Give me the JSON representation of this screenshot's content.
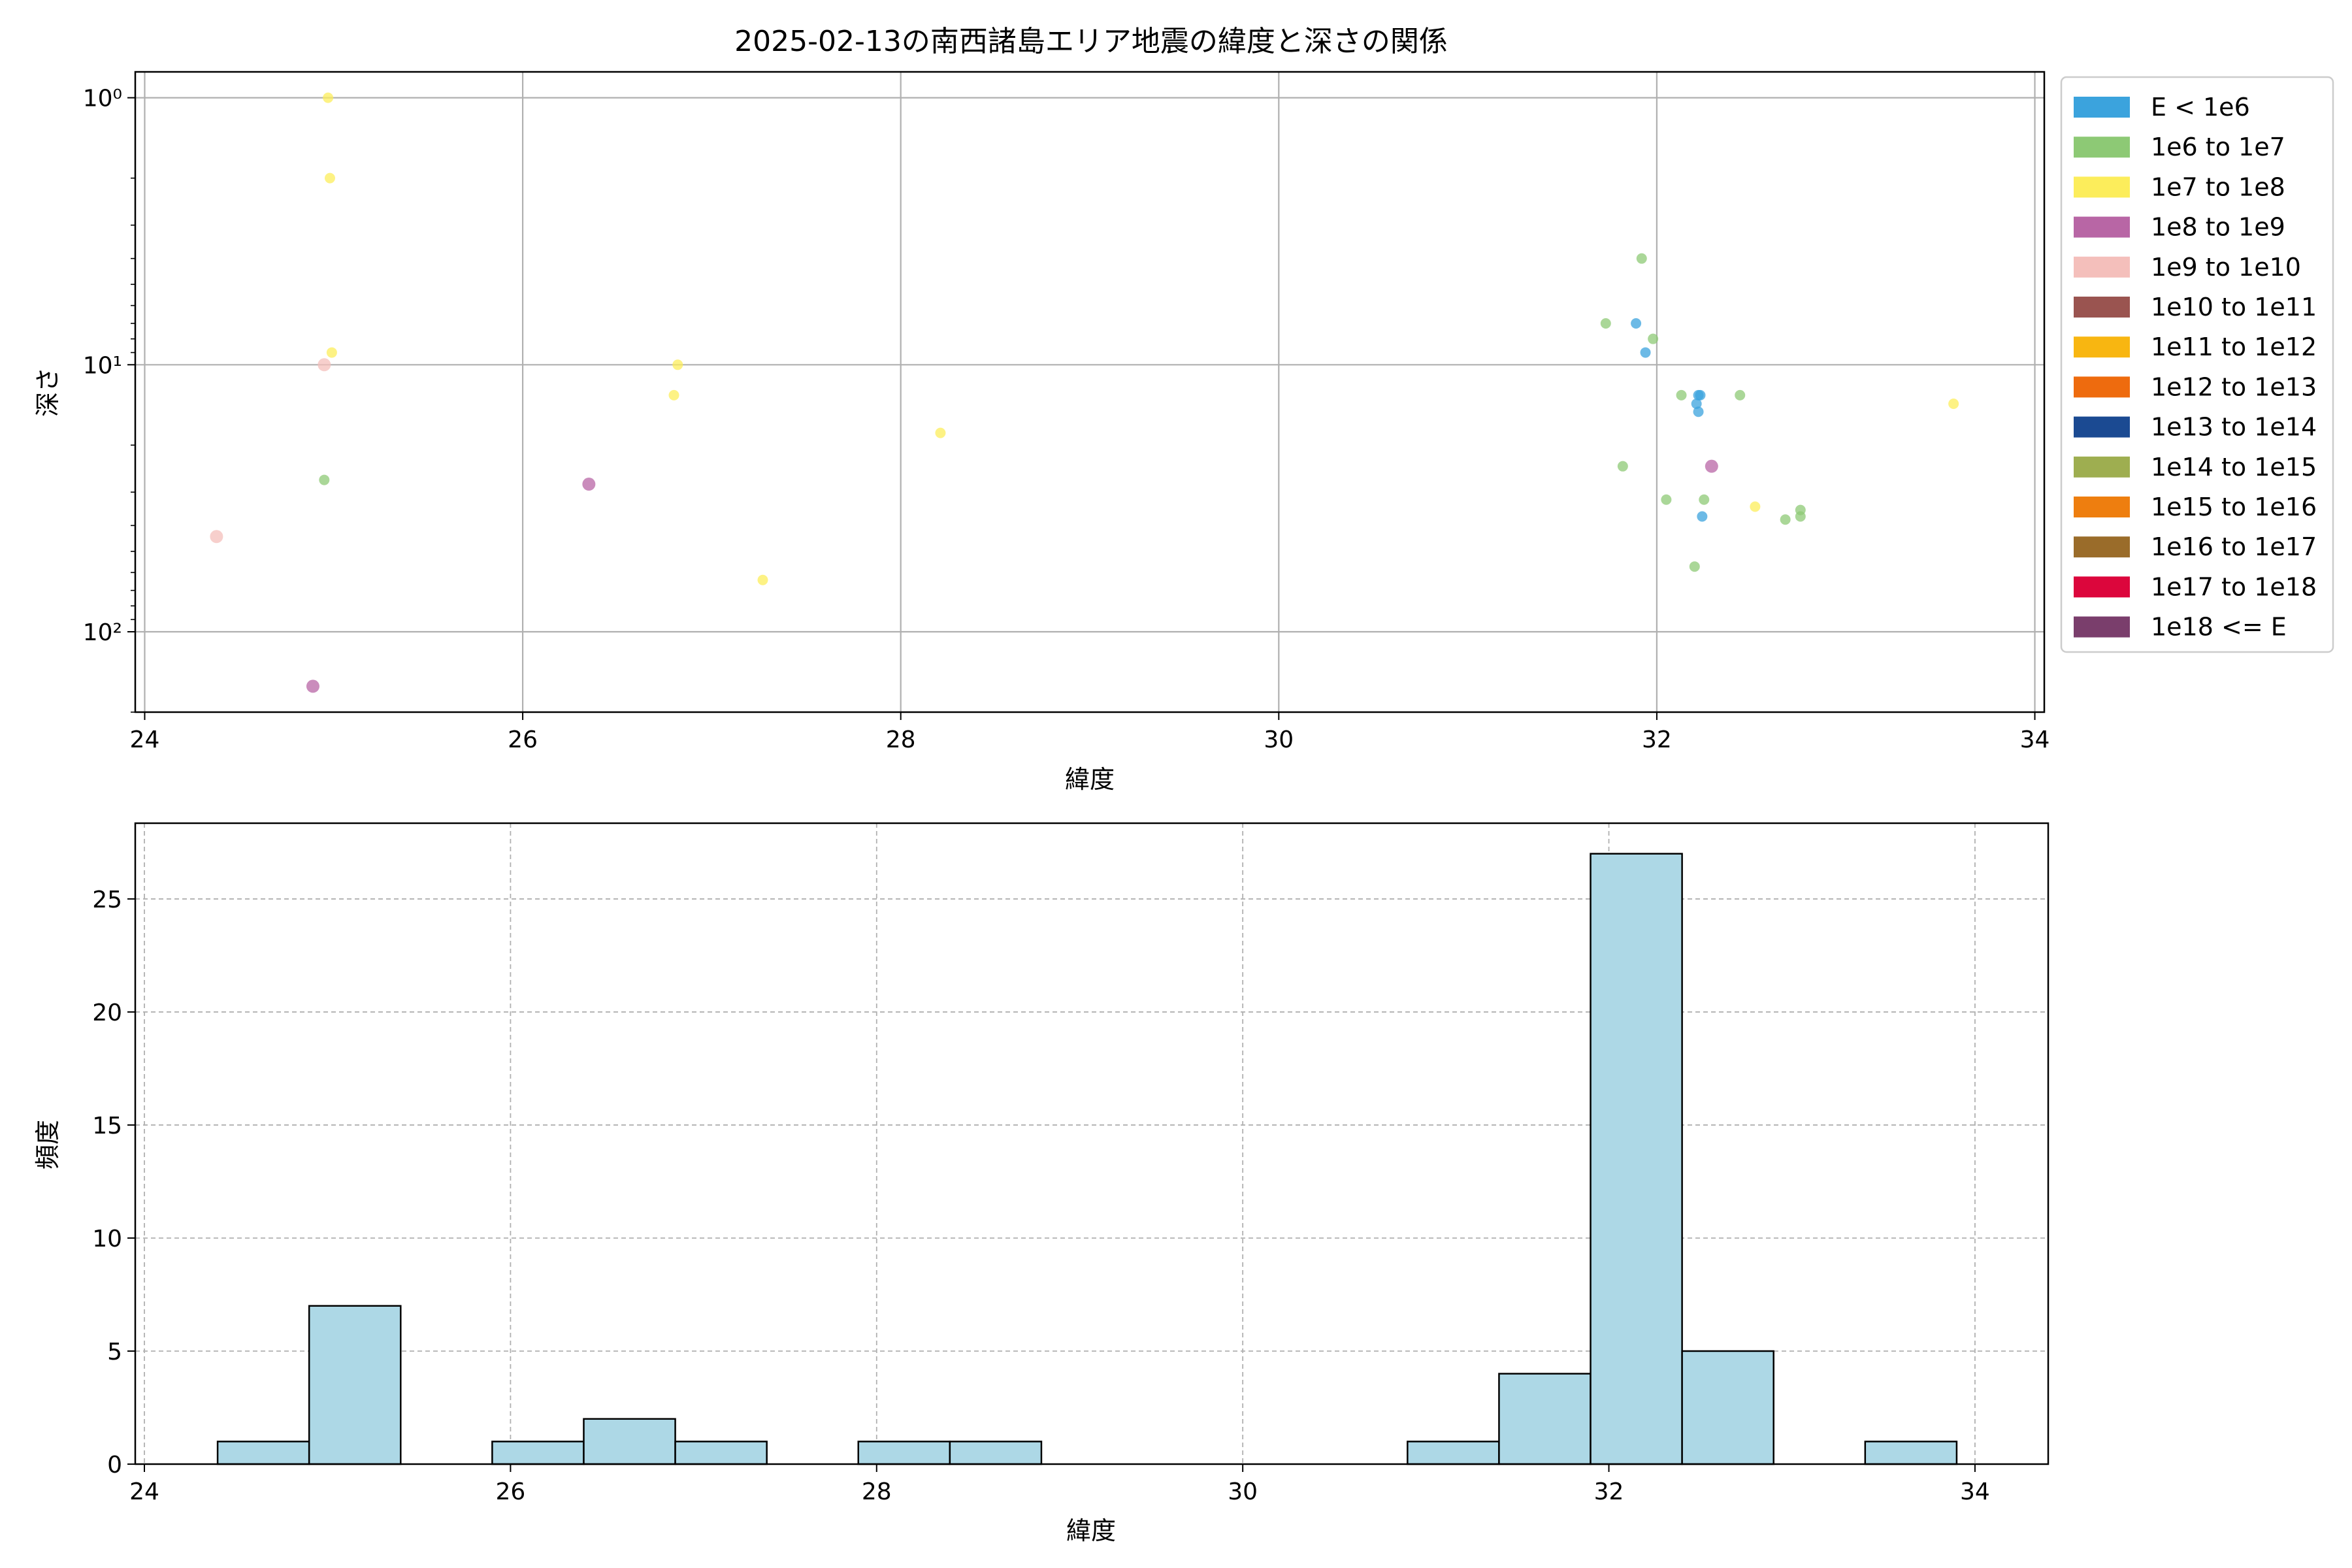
{
  "chart_data": [
    {
      "type": "scatter",
      "title": "2025-02-13の南西諸島エリア地震の緯度と深さの関係",
      "xlabel": "緯度",
      "ylabel": "深さ",
      "xlim": [
        23.95,
        34.05
      ],
      "ylim": [
        200,
        0.8
      ],
      "y_scale": "log",
      "y_inverted": true,
      "xticks": [
        24,
        26,
        28,
        30,
        32,
        34
      ],
      "yticks": [
        {
          "value": 1,
          "label": "10⁰"
        },
        {
          "value": 10,
          "label": "10¹"
        },
        {
          "value": 100,
          "label": "10²"
        }
      ],
      "grid": true,
      "legend": {
        "placement": "outside-right",
        "entries": [
          {
            "label": "E < 1e6",
            "color": "#3ba3dd"
          },
          {
            "label": "1e6 to 1e7",
            "color": "#8dc975"
          },
          {
            "label": "1e7 to 1e8",
            "color": "#fced5b"
          },
          {
            "label": "1e8 to 1e9",
            "color": "#b866a5"
          },
          {
            "label": "1e9 to 1e10",
            "color": "#f4bfbb"
          },
          {
            "label": "1e10 to 1e11",
            "color": "#9a5450"
          },
          {
            "label": "1e11 to 1e12",
            "color": "#f8b611"
          },
          {
            "label": "1e12 to 1e13",
            "color": "#ee6b0e"
          },
          {
            "label": "1e13 to 1e14",
            "color": "#1b4a92"
          },
          {
            "label": "1e14 to 1e15",
            "color": "#9eae50"
          },
          {
            "label": "1e15 to 1e16",
            "color": "#ee7e0f"
          },
          {
            "label": "1e16 to 1e17",
            "color": "#9a6c2a"
          },
          {
            "label": "1e17 to 1e18",
            "color": "#dc063c"
          },
          {
            "label": "1e18 <= E",
            "color": "#7a3e6c"
          }
        ]
      },
      "points": [
        {
          "x": 24.97,
          "y": 1.0,
          "class": 2
        },
        {
          "x": 24.98,
          "y": 2.0,
          "class": 2
        },
        {
          "x": 24.99,
          "y": 9.0,
          "class": 2
        },
        {
          "x": 24.95,
          "y": 10.0,
          "class": 4
        },
        {
          "x": 24.95,
          "y": 27,
          "class": 1
        },
        {
          "x": 24.38,
          "y": 44,
          "class": 4
        },
        {
          "x": 24.89,
          "y": 160,
          "class": 3
        },
        {
          "x": 26.35,
          "y": 28,
          "class": 3
        },
        {
          "x": 26.82,
          "y": 10.0,
          "class": 2
        },
        {
          "x": 26.8,
          "y": 13,
          "class": 2
        },
        {
          "x": 27.27,
          "y": 64,
          "class": 2
        },
        {
          "x": 28.21,
          "y": 18,
          "class": 2
        },
        {
          "x": 31.92,
          "y": 4.0,
          "class": 1
        },
        {
          "x": 31.73,
          "y": 7.0,
          "class": 1
        },
        {
          "x": 31.98,
          "y": 8.0,
          "class": 1
        },
        {
          "x": 31.89,
          "y": 7.0,
          "class": 0
        },
        {
          "x": 31.94,
          "y": 9.0,
          "class": 0
        },
        {
          "x": 32.13,
          "y": 13,
          "class": 1
        },
        {
          "x": 32.44,
          "y": 13,
          "class": 1
        },
        {
          "x": 32.22,
          "y": 13,
          "class": 0
        },
        {
          "x": 32.23,
          "y": 13,
          "class": 0
        },
        {
          "x": 32.21,
          "y": 14,
          "class": 0
        },
        {
          "x": 32.22,
          "y": 15,
          "class": 0
        },
        {
          "x": 31.82,
          "y": 24,
          "class": 1
        },
        {
          "x": 32.29,
          "y": 24,
          "class": 3
        },
        {
          "x": 32.05,
          "y": 32,
          "class": 1
        },
        {
          "x": 32.25,
          "y": 32,
          "class": 1
        },
        {
          "x": 32.52,
          "y": 34,
          "class": 2
        },
        {
          "x": 32.76,
          "y": 35,
          "class": 1
        },
        {
          "x": 32.76,
          "y": 37,
          "class": 1
        },
        {
          "x": 32.68,
          "y": 38,
          "class": 1
        },
        {
          "x": 32.24,
          "y": 37,
          "class": 0
        },
        {
          "x": 32.2,
          "y": 57,
          "class": 1
        },
        {
          "x": 33.57,
          "y": 14,
          "class": 2
        }
      ]
    },
    {
      "type": "bar",
      "xlabel": "緯度",
      "ylabel": "頻度",
      "xlim": [
        23.95,
        34.4
      ],
      "ylim": [
        0,
        28.35
      ],
      "xticks": [
        24,
        26,
        28,
        30,
        32,
        34
      ],
      "yticks": [
        0,
        5,
        10,
        15,
        20,
        25
      ],
      "grid": true,
      "bar_color": "#add8e6",
      "bins": [
        {
          "x0": 24.4,
          "x1": 24.9,
          "value": 1
        },
        {
          "x0": 24.9,
          "x1": 25.4,
          "value": 7
        },
        {
          "x0": 25.9,
          "x1": 26.4,
          "value": 1
        },
        {
          "x0": 26.4,
          "x1": 26.9,
          "value": 2
        },
        {
          "x0": 26.9,
          "x1": 27.4,
          "value": 1
        },
        {
          "x0": 27.9,
          "x1": 28.4,
          "value": 1
        },
        {
          "x0": 28.4,
          "x1": 28.9,
          "value": 1
        },
        {
          "x0": 30.9,
          "x1": 31.4,
          "value": 1
        },
        {
          "x0": 31.4,
          "x1": 31.9,
          "value": 4
        },
        {
          "x0": 31.9,
          "x1": 32.4,
          "value": 27
        },
        {
          "x0": 32.4,
          "x1": 32.9,
          "value": 5
        },
        {
          "x0": 33.4,
          "x1": 33.9,
          "value": 1
        }
      ]
    }
  ]
}
